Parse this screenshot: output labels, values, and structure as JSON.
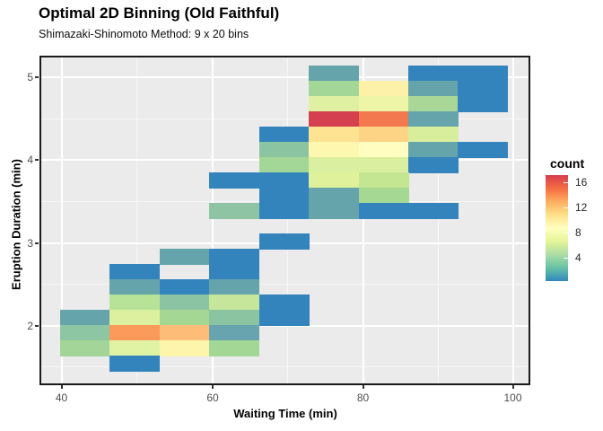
{
  "chart_data": {
    "type": "heatmap",
    "title": "Optimal 2D Binning (Old Faithful)",
    "subtitle": "Shimazaki-Shinomoto Method: 9 x 20 bins",
    "xlabel": "Waiting Time (min)",
    "ylabel": "Eruption Duration (min)",
    "x_ticks": [
      "40",
      "60",
      "80",
      "100"
    ],
    "y_ticks": [
      "5",
      "4",
      "3",
      "2"
    ],
    "x_axis_range": [
      37.3,
      102.2
    ],
    "y_axis_range": [
      1.34,
      5.25
    ],
    "grid": "white major and minor gridlines on grey panel",
    "panel_bg": "#ebebeb",
    "x_bin_edges_min": [
      39.9,
      46.5,
      53.1,
      59.7,
      66.2,
      72.8,
      79.4,
      86.0,
      92.5,
      99.1
    ],
    "y_bin_edges_min_top_to_bottom": [
      5.14,
      4.96,
      4.77,
      4.59,
      4.41,
      4.22,
      4.04,
      3.85,
      3.67,
      3.48,
      3.3,
      3.11,
      2.93,
      2.74,
      2.56,
      2.37,
      2.19,
      2.0,
      1.82,
      1.63,
      1.45
    ],
    "legend": {
      "title": "count",
      "ticks": [
        "16",
        "12",
        "8",
        "4"
      ],
      "position": "right",
      "gradient_low_to_high": [
        "#3288bd",
        "#66c2a5",
        "#abdda4",
        "#e6f598",
        "#ffffbf",
        "#fee08b",
        "#fdae61",
        "#f46d43",
        "#d53e4f"
      ],
      "range": [
        1,
        17
      ]
    },
    "tiles_note": "r = row index from top (high eruption duration), c = column index from left (low waiting time); count estimated from color scale",
    "tiles": [
      {
        "r": 0,
        "c": 5,
        "color": "#66a4ab",
        "count": 2
      },
      {
        "r": 0,
        "c": 7,
        "color": "#3384bc",
        "count": 1
      },
      {
        "r": 0,
        "c": 8,
        "color": "#3384bc",
        "count": 1
      },
      {
        "r": 1,
        "c": 5,
        "color": "#a3d797",
        "count": 4
      },
      {
        "r": 1,
        "c": 6,
        "color": "#fdf0a8",
        "count": 8
      },
      {
        "r": 1,
        "c": 7,
        "color": "#66a4ab",
        "count": 2
      },
      {
        "r": 1,
        "c": 8,
        "color": "#3384bc",
        "count": 1
      },
      {
        "r": 2,
        "c": 5,
        "color": "#dff0a2",
        "count": 6
      },
      {
        "r": 2,
        "c": 6,
        "color": "#eef5a7",
        "count": 7
      },
      {
        "r": 2,
        "c": 7,
        "color": "#a9d797",
        "count": 4
      },
      {
        "r": 2,
        "c": 8,
        "color": "#3384bc",
        "count": 1
      },
      {
        "r": 3,
        "c": 5,
        "color": "#d4404f",
        "count": 17
      },
      {
        "r": 3,
        "c": 6,
        "color": "#f4784f",
        "count": 14
      },
      {
        "r": 3,
        "c": 7,
        "color": "#66a4ab",
        "count": 2
      },
      {
        "r": 4,
        "c": 4,
        "color": "#3384bc",
        "count": 1
      },
      {
        "r": 4,
        "c": 5,
        "color": "#fde392",
        "count": 10
      },
      {
        "r": 4,
        "c": 6,
        "color": "#fdd385",
        "count": 11
      },
      {
        "r": 4,
        "c": 7,
        "color": "#d9ee9d",
        "count": 5
      },
      {
        "r": 5,
        "c": 4,
        "color": "#8bc4a1",
        "count": 3
      },
      {
        "r": 5,
        "c": 5,
        "color": "#fef7b0",
        "count": 9
      },
      {
        "r": 5,
        "c": 6,
        "color": "#fffdc0",
        "count": 9
      },
      {
        "r": 5,
        "c": 7,
        "color": "#66a4ab",
        "count": 2
      },
      {
        "r": 5,
        "c": 8,
        "color": "#3384bc",
        "count": 1
      },
      {
        "r": 6,
        "c": 4,
        "color": "#a3d797",
        "count": 4
      },
      {
        "r": 6,
        "c": 5,
        "color": "#daef9f",
        "count": 6
      },
      {
        "r": 6,
        "c": 6,
        "color": "#daef9f",
        "count": 6
      },
      {
        "r": 6,
        "c": 7,
        "color": "#3384bc",
        "count": 1
      },
      {
        "r": 7,
        "c": 3,
        "color": "#3384bc",
        "count": 1
      },
      {
        "r": 7,
        "c": 4,
        "color": "#3384bc",
        "count": 1
      },
      {
        "r": 7,
        "c": 5,
        "color": "#dff19b",
        "count": 6
      },
      {
        "r": 7,
        "c": 6,
        "color": "#c4e591",
        "count": 5
      },
      {
        "r": 8,
        "c": 4,
        "color": "#3384bc",
        "count": 1
      },
      {
        "r": 8,
        "c": 5,
        "color": "#66a4ab",
        "count": 2
      },
      {
        "r": 8,
        "c": 6,
        "color": "#a5d893",
        "count": 4
      },
      {
        "r": 9,
        "c": 3,
        "color": "#8ec4a4",
        "count": 3
      },
      {
        "r": 9,
        "c": 4,
        "color": "#3384bc",
        "count": 1
      },
      {
        "r": 9,
        "c": 5,
        "color": "#66a4ab",
        "count": 2
      },
      {
        "r": 9,
        "c": 6,
        "color": "#3384bc",
        "count": 1
      },
      {
        "r": 9,
        "c": 7,
        "color": "#3384bc",
        "count": 1
      },
      {
        "r": 11,
        "c": 4,
        "color": "#3384bc",
        "count": 1
      },
      {
        "r": 12,
        "c": 2,
        "color": "#66a4ab",
        "count": 2
      },
      {
        "r": 12,
        "c": 3,
        "color": "#3384bc",
        "count": 1
      },
      {
        "r": 13,
        "c": 1,
        "color": "#3384bc",
        "count": 1
      },
      {
        "r": 13,
        "c": 3,
        "color": "#3384bc",
        "count": 1
      },
      {
        "r": 14,
        "c": 1,
        "color": "#66a4ab",
        "count": 2
      },
      {
        "r": 14,
        "c": 2,
        "color": "#3384bc",
        "count": 1
      },
      {
        "r": 14,
        "c": 3,
        "color": "#66a4ab",
        "count": 2
      },
      {
        "r": 15,
        "c": 1,
        "color": "#b7e399",
        "count": 5
      },
      {
        "r": 15,
        "c": 2,
        "color": "#8bc4a3",
        "count": 3
      },
      {
        "r": 15,
        "c": 3,
        "color": "#c6e79b",
        "count": 5
      },
      {
        "r": 15,
        "c": 4,
        "color": "#3384bc",
        "count": 1
      },
      {
        "r": 16,
        "c": 0,
        "color": "#66a4ab",
        "count": 2
      },
      {
        "r": 16,
        "c": 1,
        "color": "#ddf0a0",
        "count": 6
      },
      {
        "r": 16,
        "c": 2,
        "color": "#a5d794",
        "count": 4
      },
      {
        "r": 16,
        "c": 3,
        "color": "#8bc4a0",
        "count": 3
      },
      {
        "r": 16,
        "c": 4,
        "color": "#3384bc",
        "count": 1
      },
      {
        "r": 17,
        "c": 0,
        "color": "#8dc6a2",
        "count": 3
      },
      {
        "r": 17,
        "c": 1,
        "color": "#fb9a5b",
        "count": 13
      },
      {
        "r": 17,
        "c": 2,
        "color": "#fdbd78",
        "count": 12
      },
      {
        "r": 17,
        "c": 3,
        "color": "#68a4b0",
        "count": 2
      },
      {
        "r": 18,
        "c": 0,
        "color": "#a3d598",
        "count": 4
      },
      {
        "r": 18,
        "c": 1,
        "color": "#e0f2a4",
        "count": 6
      },
      {
        "r": 18,
        "c": 2,
        "color": "#fdf5ac",
        "count": 8
      },
      {
        "r": 18,
        "c": 3,
        "color": "#a3d795",
        "count": 4
      },
      {
        "r": 19,
        "c": 1,
        "color": "#3384bc",
        "count": 1
      }
    ]
  }
}
